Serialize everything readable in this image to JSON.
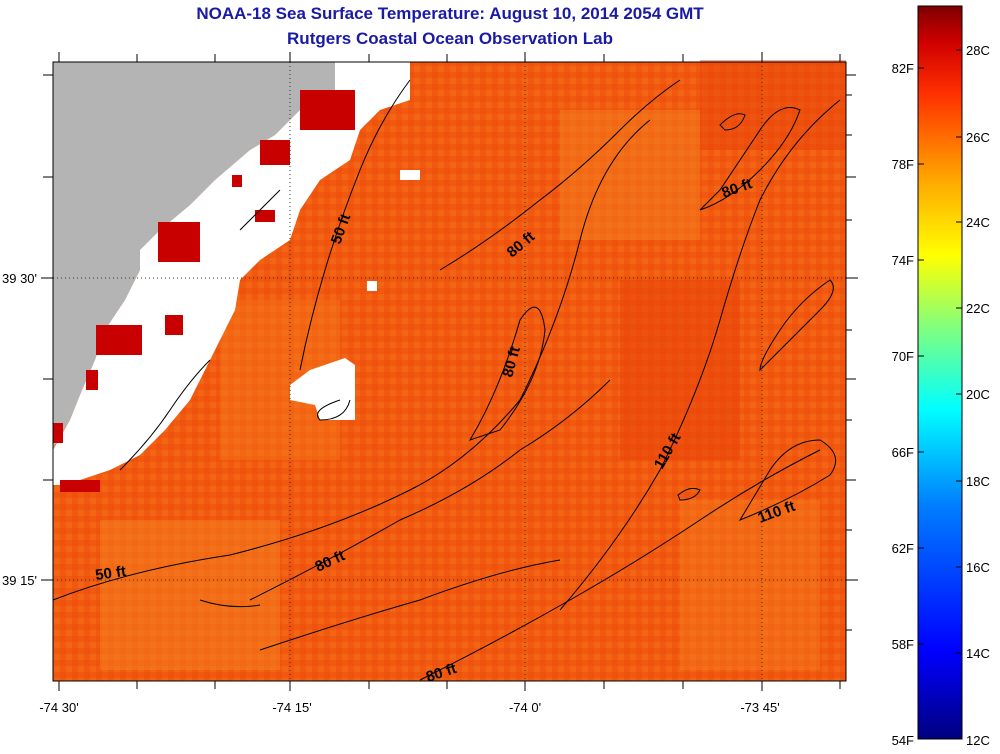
{
  "header": {
    "title": "NOAA-18 Sea Surface Temperature:  August 10, 2014 2054 GMT",
    "subtitle": "Rutgers Coastal Ocean Observation Lab"
  },
  "map": {
    "lon_labels": [
      "-74 30'",
      "-74 15'",
      "-74 0'",
      "-73 45'"
    ],
    "lat_labels": [
      "39 30'",
      "39 15'"
    ],
    "contour_labels": [
      "50 ft",
      "80 ft",
      "80 ft",
      "80 ft",
      "110 ft",
      "110 ft",
      "50 ft",
      "80 ft",
      "80 ft"
    ]
  },
  "colorbar": {
    "fahrenheit_labels": [
      "82F",
      "78F",
      "74F",
      "70F",
      "66F",
      "62F",
      "58F",
      "54F"
    ],
    "celsius_labels": [
      "28C",
      "26C",
      "24C",
      "22C",
      "20C",
      "18C",
      "16C",
      "14C",
      "12C"
    ],
    "colors": [
      "#00007f",
      "#0000ff",
      "#007fff",
      "#00ffff",
      "#7fff7f",
      "#ffff00",
      "#ff7f00",
      "#ff0000",
      "#7f0000"
    ]
  }
}
